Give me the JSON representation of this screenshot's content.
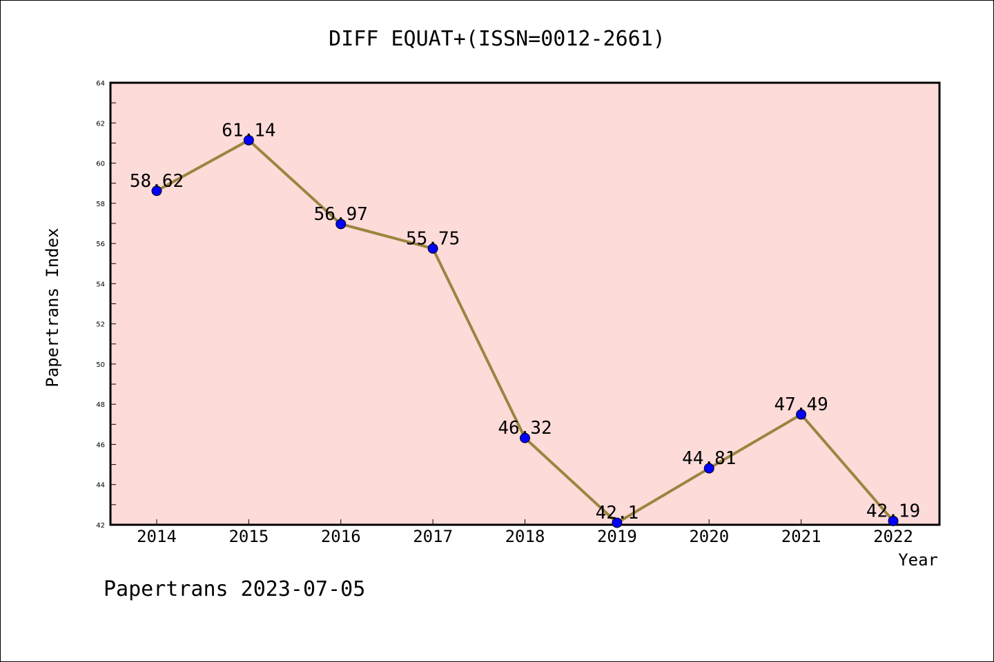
{
  "chart_data": {
    "type": "line",
    "title": "DIFF EQUAT+(ISSN=0012-2661)",
    "xlabel": "Year",
    "ylabel": "Papertrans Index",
    "categories": [
      "2014",
      "2015",
      "2016",
      "2017",
      "2018",
      "2019",
      "2020",
      "2021",
      "2022"
    ],
    "series": [
      {
        "values": [
          58.62,
          61.14,
          56.97,
          55.75,
          46.32,
          42.1,
          44.81,
          47.49,
          42.19
        ],
        "labels": [
          "58.62",
          "61.14",
          "56.97",
          "55.75",
          "46.32",
          "42.1",
          "44.81",
          "47.49",
          "42.19"
        ]
      }
    ],
    "ylim": [
      42,
      64
    ],
    "yticks": [
      "42",
      "44",
      "46",
      "48",
      "50",
      "52",
      "54",
      "56",
      "58",
      "60",
      "62",
      "64"
    ],
    "grid": false,
    "colors": {
      "plot_background": "#fddbd9",
      "line": "#9b8540",
      "marker": "#0000ff"
    }
  },
  "footer": "Papertrans 2023-07-05"
}
